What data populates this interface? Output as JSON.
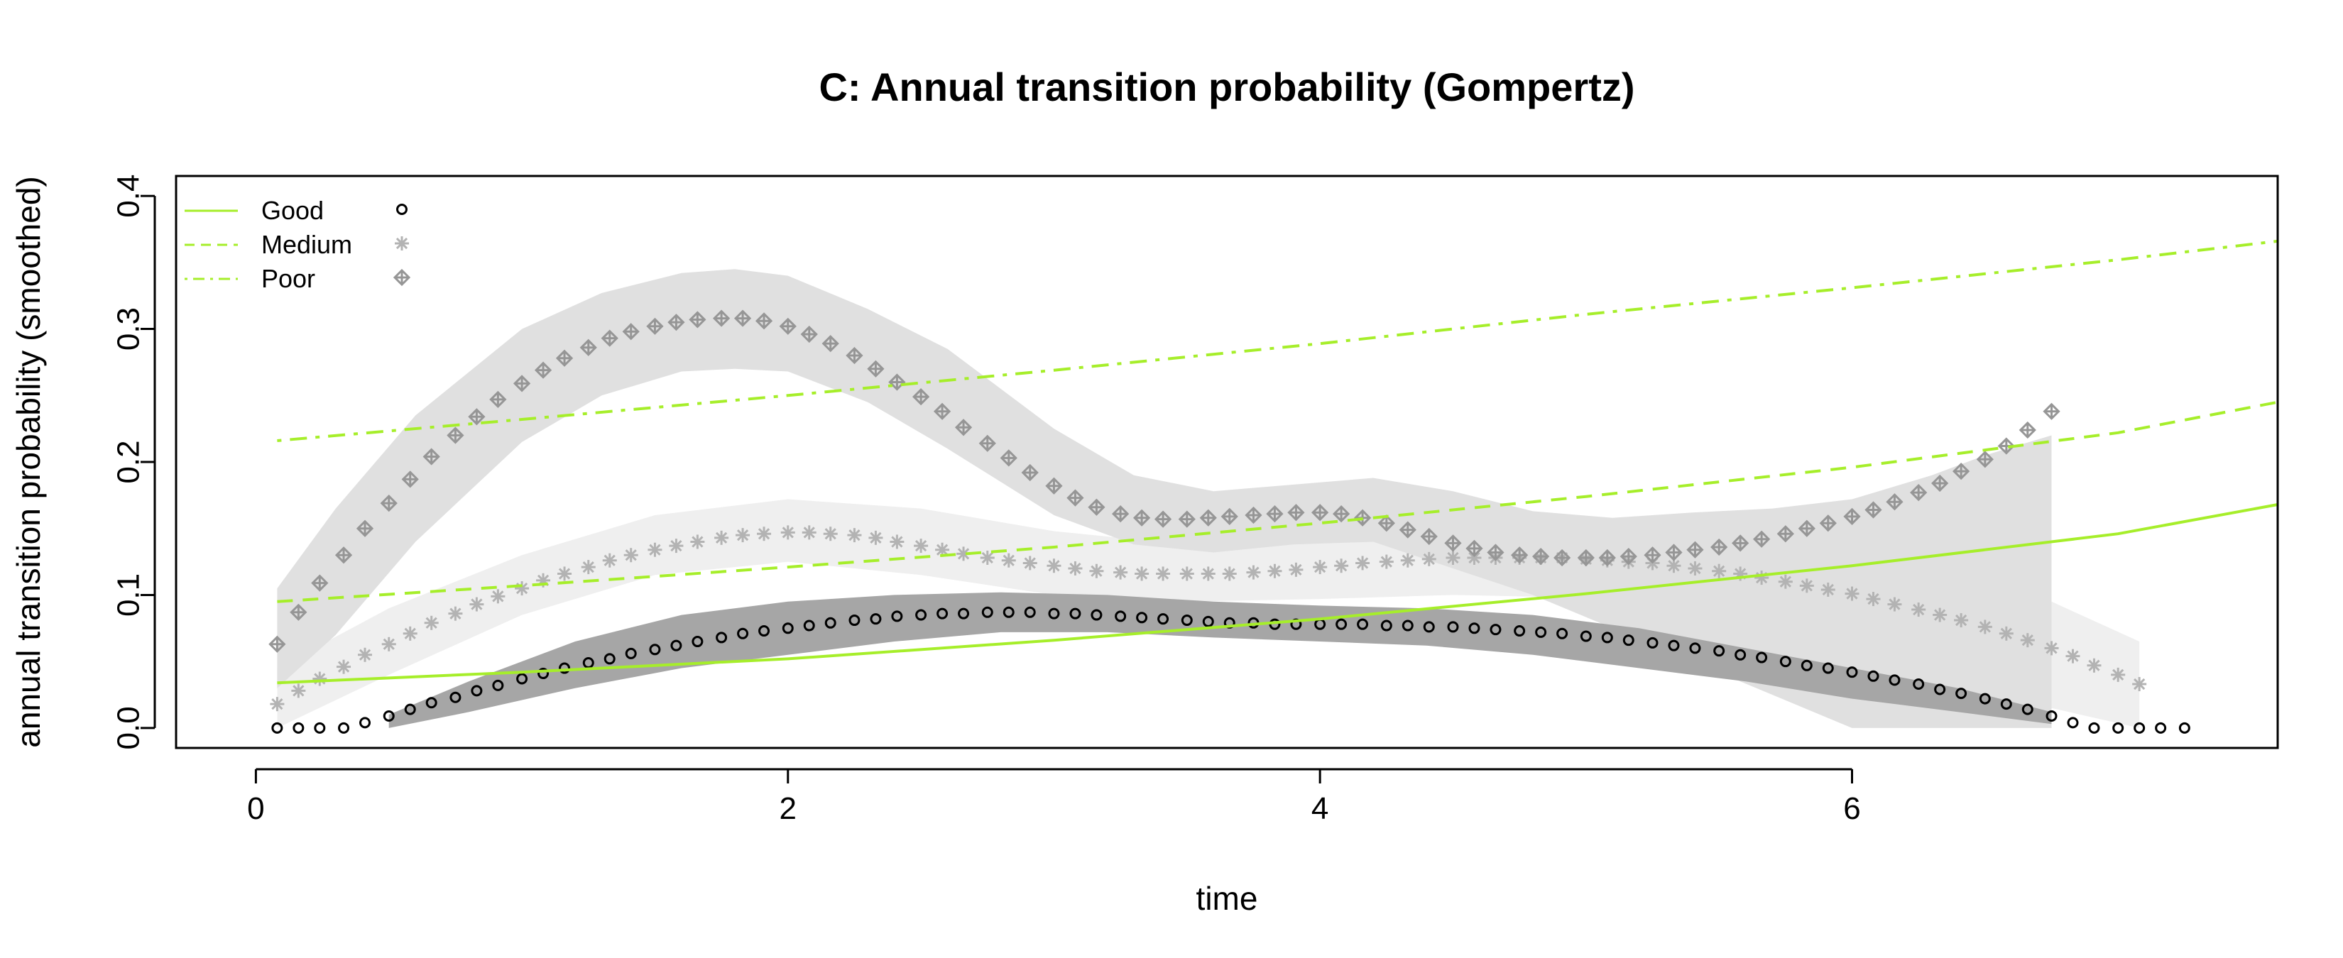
{
  "chart_data": {
    "type": "line",
    "title": "C: Annual transition probability (Gompertz)",
    "xlabel": "time",
    "ylabel": "annual transition probability (smoothed)",
    "xlim": [
      -0.3,
      7.6
    ],
    "ylim": [
      -0.015,
      0.415
    ],
    "x_ticks": [
      0,
      2,
      4,
      6
    ],
    "y_ticks": [
      0.0,
      0.1,
      0.2,
      0.3,
      0.4
    ],
    "x_tick_labels": [
      "0",
      "2",
      "4",
      "6"
    ],
    "y_tick_labels": [
      "0.0",
      "0.1",
      "0.2",
      "0.3",
      "0.4"
    ],
    "grid": false,
    "legend": {
      "position": "top-left",
      "entries": [
        {
          "label": "Good",
          "line": "solid",
          "marker": "circle"
        },
        {
          "label": "Medium",
          "line": "dashed",
          "marker": "asterisk"
        },
        {
          "label": "Poor",
          "line": "dotdash",
          "marker": "crossed-diamond"
        }
      ]
    },
    "colors": {
      "fitted_line": "#a6ee2a",
      "good_points": "#000000",
      "medium_points": "#b3b3b3",
      "poor_points": "#969696",
      "good_band": "#a6a6a6",
      "medium_band": "#efefef",
      "poor_band": "#e0e0e0"
    },
    "fitted_lines": [
      {
        "name": "Good",
        "linetype": "solid",
        "x": [
          0.08,
          1,
          2,
          3,
          4,
          5,
          6,
          7,
          7.6
        ],
        "y": [
          0.034,
          0.042,
          0.052,
          0.066,
          0.082,
          0.101,
          0.122,
          0.146,
          0.168
        ]
      },
      {
        "name": "Medium",
        "linetype": "dashed",
        "x": [
          0.08,
          1,
          2,
          3,
          4,
          5,
          6,
          7,
          7.6
        ],
        "y": [
          0.095,
          0.107,
          0.121,
          0.136,
          0.154,
          0.174,
          0.196,
          0.222,
          0.245
        ]
      },
      {
        "name": "Poor",
        "linetype": "dotdash",
        "x": [
          0.08,
          1,
          2,
          3,
          4,
          5,
          6,
          7,
          7.6
        ],
        "y": [
          0.216,
          0.232,
          0.25,
          0.269,
          0.289,
          0.311,
          0.331,
          0.352,
          0.366
        ]
      }
    ],
    "smoothed_series": [
      {
        "name": "Good",
        "marker": "circle",
        "x": [
          0.08,
          0.16,
          0.24,
          0.33,
          0.41,
          0.5,
          0.58,
          0.66,
          0.75,
          0.83,
          0.91,
          1.0,
          1.08,
          1.16,
          1.25,
          1.33,
          1.41,
          1.5,
          1.58,
          1.66,
          1.75,
          1.83,
          1.91,
          2.0,
          2.08,
          2.16,
          2.25,
          2.33,
          2.41,
          2.5,
          2.58,
          2.66,
          2.75,
          2.83,
          2.91,
          3.0,
          3.08,
          3.16,
          3.25,
          3.33,
          3.41,
          3.5,
          3.58,
          3.66,
          3.75,
          3.83,
          3.91,
          4.0,
          4.08,
          4.16,
          4.25,
          4.33,
          4.41,
          4.5,
          4.58,
          4.66,
          4.75,
          4.83,
          4.91,
          5.0,
          5.08,
          5.16,
          5.25,
          5.33,
          5.41,
          5.5,
          5.58,
          5.66,
          5.75,
          5.83,
          5.91,
          6.0,
          6.08,
          6.16,
          6.25,
          6.33,
          6.41,
          6.5,
          6.58,
          6.66,
          6.75,
          6.83,
          6.91,
          7.0,
          7.08,
          7.16,
          7.25
        ],
        "y": [
          0.0,
          0.0,
          0.0,
          0.0,
          0.004,
          0.009,
          0.014,
          0.019,
          0.023,
          0.028,
          0.032,
          0.037,
          0.041,
          0.045,
          0.049,
          0.052,
          0.056,
          0.059,
          0.062,
          0.065,
          0.068,
          0.071,
          0.073,
          0.075,
          0.077,
          0.079,
          0.081,
          0.082,
          0.084,
          0.085,
          0.086,
          0.086,
          0.087,
          0.087,
          0.087,
          0.086,
          0.086,
          0.085,
          0.084,
          0.083,
          0.082,
          0.081,
          0.08,
          0.079,
          0.079,
          0.078,
          0.078,
          0.078,
          0.078,
          0.078,
          0.077,
          0.077,
          0.076,
          0.076,
          0.075,
          0.074,
          0.073,
          0.072,
          0.071,
          0.069,
          0.068,
          0.066,
          0.064,
          0.062,
          0.06,
          0.058,
          0.055,
          0.053,
          0.05,
          0.047,
          0.045,
          0.042,
          0.039,
          0.036,
          0.033,
          0.029,
          0.026,
          0.022,
          0.018,
          0.014,
          0.009,
          0.004,
          0.0,
          0.0,
          0.0,
          0.0,
          0.0
        ]
      },
      {
        "name": "Medium",
        "marker": "asterisk",
        "x": [
          0.08,
          0.16,
          0.24,
          0.33,
          0.41,
          0.5,
          0.58,
          0.66,
          0.75,
          0.83,
          0.91,
          1.0,
          1.08,
          1.16,
          1.25,
          1.33,
          1.41,
          1.5,
          1.58,
          1.66,
          1.75,
          1.83,
          1.91,
          2.0,
          2.08,
          2.16,
          2.25,
          2.33,
          2.41,
          2.5,
          2.58,
          2.66,
          2.75,
          2.83,
          2.91,
          3.0,
          3.08,
          3.16,
          3.25,
          3.33,
          3.41,
          3.5,
          3.58,
          3.66,
          3.75,
          3.83,
          3.91,
          4.0,
          4.08,
          4.16,
          4.25,
          4.33,
          4.41,
          4.5,
          4.58,
          4.66,
          4.75,
          4.83,
          4.91,
          5.0,
          5.08,
          5.16,
          5.25,
          5.33,
          5.41,
          5.5,
          5.58,
          5.66,
          5.75,
          5.83,
          5.91,
          6.0,
          6.08,
          6.16,
          6.25,
          6.33,
          6.41,
          6.5,
          6.58,
          6.66,
          6.75,
          6.83,
          6.91,
          7.0,
          7.08
        ],
        "y": [
          0.018,
          0.028,
          0.037,
          0.046,
          0.055,
          0.063,
          0.071,
          0.079,
          0.086,
          0.093,
          0.099,
          0.105,
          0.111,
          0.116,
          0.121,
          0.126,
          0.13,
          0.134,
          0.137,
          0.14,
          0.143,
          0.145,
          0.146,
          0.147,
          0.147,
          0.146,
          0.145,
          0.143,
          0.14,
          0.137,
          0.134,
          0.131,
          0.128,
          0.126,
          0.124,
          0.122,
          0.12,
          0.118,
          0.117,
          0.116,
          0.116,
          0.116,
          0.116,
          0.116,
          0.117,
          0.118,
          0.119,
          0.121,
          0.122,
          0.124,
          0.125,
          0.126,
          0.127,
          0.128,
          0.128,
          0.128,
          0.128,
          0.128,
          0.128,
          0.127,
          0.126,
          0.125,
          0.124,
          0.122,
          0.12,
          0.118,
          0.116,
          0.113,
          0.11,
          0.107,
          0.104,
          0.101,
          0.097,
          0.093,
          0.089,
          0.085,
          0.081,
          0.076,
          0.071,
          0.066,
          0.06,
          0.054,
          0.047,
          0.04,
          0.033
        ]
      },
      {
        "name": "Poor",
        "marker": "crossed-diamond",
        "x": [
          0.08,
          0.16,
          0.24,
          0.33,
          0.41,
          0.5,
          0.58,
          0.66,
          0.75,
          0.83,
          0.91,
          1.0,
          1.08,
          1.16,
          1.25,
          1.33,
          1.41,
          1.5,
          1.58,
          1.66,
          1.75,
          1.83,
          1.91,
          2.0,
          2.08,
          2.16,
          2.25,
          2.33,
          2.41,
          2.5,
          2.58,
          2.66,
          2.75,
          2.83,
          2.91,
          3.0,
          3.08,
          3.16,
          3.25,
          3.33,
          3.41,
          3.5,
          3.58,
          3.66,
          3.75,
          3.83,
          3.91,
          4.0,
          4.08,
          4.16,
          4.25,
          4.33,
          4.41,
          4.5,
          4.58,
          4.66,
          4.75,
          4.83,
          4.91,
          5.0,
          5.08,
          5.16,
          5.25,
          5.33,
          5.41,
          5.5,
          5.58,
          5.66,
          5.75,
          5.83,
          5.91,
          6.0,
          6.08,
          6.16,
          6.25,
          6.33,
          6.41,
          6.5,
          6.58,
          6.66,
          6.75
        ],
        "y": [
          0.063,
          0.087,
          0.109,
          0.13,
          0.15,
          0.169,
          0.187,
          0.204,
          0.22,
          0.234,
          0.247,
          0.259,
          0.269,
          0.278,
          0.286,
          0.293,
          0.298,
          0.302,
          0.305,
          0.307,
          0.308,
          0.308,
          0.306,
          0.302,
          0.296,
          0.289,
          0.28,
          0.27,
          0.26,
          0.249,
          0.238,
          0.226,
          0.214,
          0.203,
          0.192,
          0.182,
          0.173,
          0.166,
          0.161,
          0.158,
          0.157,
          0.157,
          0.158,
          0.159,
          0.16,
          0.161,
          0.162,
          0.162,
          0.161,
          0.158,
          0.154,
          0.149,
          0.144,
          0.139,
          0.135,
          0.132,
          0.13,
          0.129,
          0.128,
          0.128,
          0.128,
          0.129,
          0.13,
          0.132,
          0.134,
          0.136,
          0.139,
          0.142,
          0.146,
          0.15,
          0.154,
          0.159,
          0.164,
          0.17,
          0.177,
          0.184,
          0.193,
          0.202,
          0.212,
          0.224,
          0.238
        ]
      }
    ],
    "confidence_bands": [
      {
        "name": "Medium",
        "x": [
          0.08,
          0.5,
          1.0,
          1.5,
          2.0,
          2.5,
          3.0,
          3.5,
          4.0,
          4.5,
          5.0,
          5.5,
          6.0,
          6.5,
          6.75,
          7.08
        ],
        "lower": [
          0.0,
          0.04,
          0.085,
          0.115,
          0.125,
          0.115,
          0.1,
          0.095,
          0.097,
          0.1,
          0.098,
          0.08,
          0.055,
          0.03,
          0.015,
          0.0
        ],
        "upper": [
          0.045,
          0.09,
          0.13,
          0.16,
          0.172,
          0.165,
          0.148,
          0.138,
          0.145,
          0.153,
          0.155,
          0.15,
          0.14,
          0.115,
          0.095,
          0.065
        ]
      },
      {
        "name": "Poor",
        "x": [
          0.08,
          0.3,
          0.6,
          1.0,
          1.3,
          1.6,
          1.8,
          2.0,
          2.3,
          2.6,
          3.0,
          3.3,
          3.6,
          3.9,
          4.2,
          4.5,
          4.8,
          5.1,
          5.4,
          5.7,
          6.0,
          6.3,
          6.5,
          6.75
        ],
        "lower": [
          0.03,
          0.07,
          0.14,
          0.215,
          0.25,
          0.268,
          0.27,
          0.268,
          0.245,
          0.21,
          0.16,
          0.138,
          0.132,
          0.138,
          0.14,
          0.12,
          0.1,
          0.075,
          0.05,
          0.025,
          0.0,
          0.0,
          0.0,
          0.0
        ],
        "upper": [
          0.105,
          0.165,
          0.235,
          0.3,
          0.327,
          0.342,
          0.345,
          0.34,
          0.315,
          0.285,
          0.225,
          0.19,
          0.178,
          0.183,
          0.188,
          0.178,
          0.163,
          0.158,
          0.162,
          0.165,
          0.172,
          0.19,
          0.205,
          0.22
        ]
      },
      {
        "name": "Good",
        "x": [
          0.5,
          0.8,
          1.2,
          1.6,
          2.0,
          2.4,
          2.8,
          3.2,
          3.6,
          4.0,
          4.4,
          4.8,
          5.2,
          5.6,
          6.0,
          6.4,
          6.75
        ],
        "lower": [
          0.0,
          0.012,
          0.03,
          0.045,
          0.055,
          0.065,
          0.072,
          0.072,
          0.068,
          0.065,
          0.062,
          0.055,
          0.045,
          0.035,
          0.022,
          0.012,
          0.003
        ],
        "upper": [
          0.01,
          0.035,
          0.065,
          0.085,
          0.095,
          0.1,
          0.102,
          0.1,
          0.095,
          0.092,
          0.09,
          0.085,
          0.075,
          0.06,
          0.045,
          0.03,
          0.012
        ]
      }
    ]
  }
}
